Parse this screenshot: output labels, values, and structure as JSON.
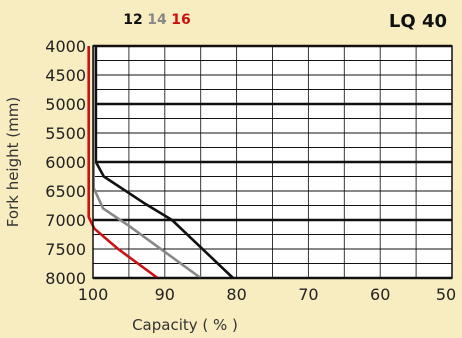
{
  "chart_data": {
    "type": "line",
    "title": "LQ 40",
    "xlabel": "Capacity ( % )",
    "ylabel": "Fork height (mm)",
    "xlim": [
      100,
      50
    ],
    "ylim": [
      4000,
      8000
    ],
    "x_ticks": [
      "100",
      "90",
      "80",
      "70",
      "60",
      "50"
    ],
    "y_ticks": [
      "4000",
      "4500",
      "5000",
      "5500",
      "6000",
      "6500",
      "7000",
      "7500",
      "8000"
    ],
    "grid": true,
    "series": [
      {
        "name": "12",
        "color": "#111111",
        "points": [
          [
            99.6,
            4000
          ],
          [
            99.6,
            6000
          ],
          [
            98.5,
            6250
          ],
          [
            93,
            6700
          ],
          [
            89,
            7000
          ],
          [
            80.5,
            8000
          ]
        ]
      },
      {
        "name": "14",
        "color": "#888888",
        "points": [
          [
            99.9,
            4000
          ],
          [
            99.9,
            6450
          ],
          [
            98.6,
            6800
          ],
          [
            95,
            7100
          ],
          [
            85,
            8000
          ]
        ]
      },
      {
        "name": "16",
        "color": "#cc1111",
        "points": [
          [
            100.6,
            4000
          ],
          [
            100.6,
            6950
          ],
          [
            99.8,
            7150
          ],
          [
            96.5,
            7500
          ],
          [
            91,
            8000
          ]
        ]
      }
    ]
  }
}
